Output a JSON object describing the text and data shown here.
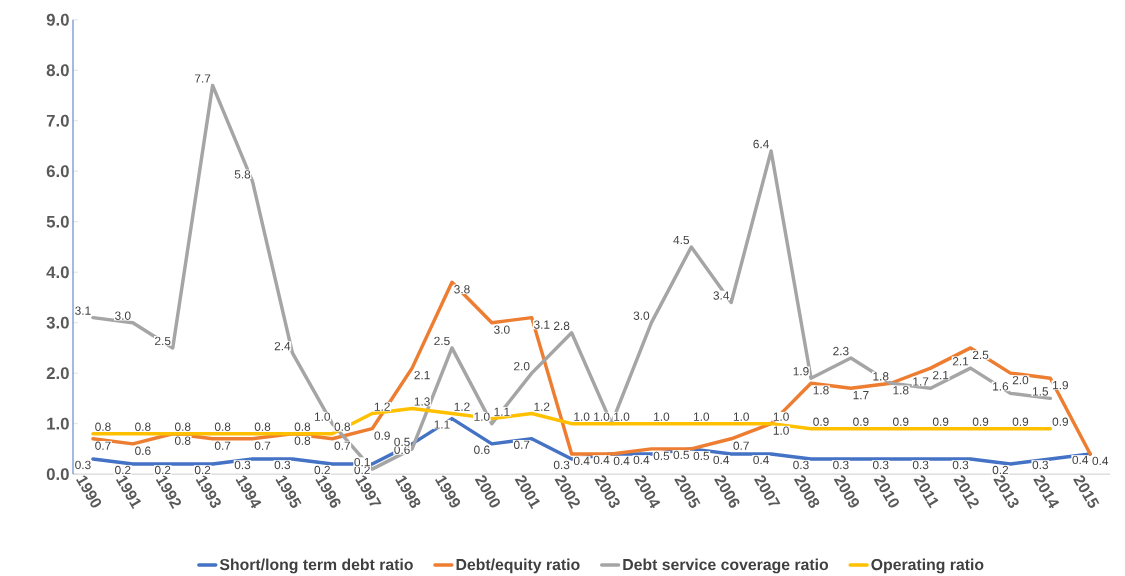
{
  "chart_data": {
    "type": "line",
    "categories": [
      "1990",
      "1991",
      "1992",
      "1993",
      "1994",
      "1995",
      "1996",
      "1997",
      "1998",
      "1999",
      "2000",
      "2001",
      "2002",
      "2003",
      "2004",
      "2005",
      "2006",
      "2007",
      "2008",
      "2009",
      "2010",
      "2011",
      "2012",
      "2013",
      "2014",
      "2015"
    ],
    "series": [
      {
        "name": "Short/long term debt ratio",
        "color": "#4472c4",
        "values": [
          0.3,
          0.2,
          0.2,
          0.2,
          0.3,
          0.3,
          0.2,
          0.2,
          0.6,
          1.1,
          0.6,
          0.7,
          0.3,
          0.4,
          0.4,
          0.5,
          0.4,
          0.4,
          0.3,
          0.3,
          0.3,
          0.3,
          0.3,
          0.2,
          0.3,
          0.4
        ],
        "value_labels": [
          "0.3",
          "0.2",
          "0.2",
          "0.2",
          "0.3",
          "0.3",
          "0.2",
          "0.2",
          "0.6",
          "1.1",
          "0.6",
          "0.7",
          "0.3",
          "0.4",
          "0.4",
          "0.5",
          "0.4",
          "0.4",
          "0.3",
          "0.3",
          "0.3",
          "0.3",
          "0.3",
          "0.2",
          "0.3",
          "0.4"
        ]
      },
      {
        "name": "Debt/equity ratio",
        "color": "#ed7d31",
        "values": [
          0.7,
          0.6,
          0.8,
          0.7,
          0.7,
          0.8,
          0.7,
          0.9,
          2.1,
          3.8,
          3.0,
          3.1,
          0.4,
          0.4,
          0.5,
          0.5,
          0.7,
          1.0,
          1.8,
          1.7,
          1.8,
          2.1,
          2.5,
          2.0,
          1.9,
          0.4
        ],
        "value_labels": [
          "0.7",
          "0.6",
          "0.8",
          "0.7",
          "0.7",
          "0.8",
          "0.7",
          "0.9",
          "2.1",
          "3.8",
          "3.0",
          "3.1",
          "0.4",
          "0.4",
          "0.5",
          "0.5",
          "0.7",
          "1.0",
          "1.8",
          "1.7",
          "1.8",
          "2.1",
          "2.5",
          "2.0",
          "1.9",
          "0.4"
        ]
      },
      {
        "name": "Debt service coverage ratio",
        "color": "#a5a5a5",
        "values": [
          3.1,
          3.0,
          2.5,
          7.7,
          5.8,
          2.4,
          1.0,
          0.1,
          0.5,
          2.5,
          1.0,
          2.0,
          2.8,
          1.0,
          3.0,
          4.5,
          3.4,
          6.4,
          1.9,
          2.3,
          1.8,
          1.7,
          2.1,
          1.6,
          1.5,
          null
        ],
        "value_labels": [
          "3.1",
          "3.0",
          "2.5",
          "7.7",
          "5.8",
          "2.4",
          "1.0",
          "0.1",
          "0.5",
          "2.5",
          "1.0",
          "2.0",
          "2.8",
          "1.0",
          "3.0",
          "4.5",
          "3.4",
          "6.4",
          "1.9",
          "2.3",
          "1.8",
          "1.7",
          "2.1",
          "1.6",
          "1.5",
          null
        ]
      },
      {
        "name": "Operating ratio",
        "color": "#ffc000",
        "values": [
          0.8,
          0.8,
          0.8,
          0.8,
          0.8,
          0.8,
          0.8,
          1.2,
          1.3,
          1.2,
          1.1,
          1.2,
          1.0,
          1.0,
          1.0,
          1.0,
          1.0,
          1.0,
          0.9,
          0.9,
          0.9,
          0.9,
          0.9,
          0.9,
          0.9,
          null
        ],
        "value_labels": [
          "0.8",
          "0.8",
          "0.8",
          "0.8",
          "0.8",
          "0.8",
          "0.8",
          "1.2",
          "1.3",
          "1.2",
          "1.1",
          "1.2",
          "1.0",
          "1.0",
          "1.0",
          "1.0",
          "1.0",
          "1.0",
          "0.9",
          "0.9",
          "0.9",
          "0.9",
          "0.9",
          "0.9",
          "0.9",
          null
        ]
      }
    ],
    "ylim": [
      0,
      9
    ],
    "yticks": [
      {
        "value": 0,
        "label": "0.0"
      },
      {
        "value": 1,
        "label": "1.0"
      },
      {
        "value": 2,
        "label": "2.0"
      },
      {
        "value": 3,
        "label": "3.0"
      },
      {
        "value": 4,
        "label": "4.0"
      },
      {
        "value": 5,
        "label": "5.0"
      },
      {
        "value": 6,
        "label": "6.0"
      },
      {
        "value": 7,
        "label": "7.0"
      },
      {
        "value": 8,
        "label": "8.0"
      },
      {
        "value": 9,
        "label": "9.0"
      }
    ],
    "grid": false,
    "legend": "bottom",
    "marker": "none",
    "line_style": "solid"
  }
}
